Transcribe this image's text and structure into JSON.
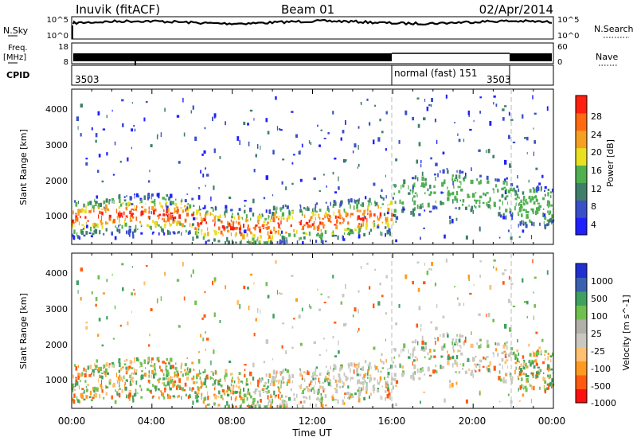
{
  "header": {
    "station": "Inuvik (fitACF)",
    "beam": "Beam 01",
    "date": "02/Apr/2014"
  },
  "colors": {
    "power": [
      "#2020ff",
      "#3a50c8",
      "#3f7f6a",
      "#50b050",
      "#e8e020",
      "#f5a020",
      "#ff6a10",
      "#ff2010"
    ],
    "velocity": [
      "#ff1010",
      "#ff5a10",
      "#ff9a20",
      "#ffc070",
      "#c8c8c0",
      "#b0b0a8",
      "#70c050",
      "#40a060",
      "#3a60b0",
      "#2030d0"
    ]
  },
  "chart_data": [
    {
      "type": "line",
      "title": "N.Sky / N.Search",
      "left_label": "N.Sky",
      "right_label": "N.Search",
      "left_ticks": [
        "10^5",
        "10^0"
      ],
      "right_ticks": [
        "10^5",
        "10^0"
      ]
    },
    {
      "type": "line",
      "title": "Freq / Nave",
      "left_label": "Freq.",
      "left_unit": "[MHz]",
      "right_label": "Nave",
      "left_ticks": [
        "18",
        "8"
      ],
      "right_ticks": [
        "60",
        "0"
      ]
    },
    {
      "type": "table",
      "label": "CPID",
      "segments": [
        {
          "text": "3503",
          "start_hour": 0,
          "end_hour": 16
        },
        {
          "text": "normal (fast) 151",
          "start_hour": 16,
          "end_hour": 22
        },
        {
          "text": "3503",
          "start_hour": 22,
          "end_hour": 24
        }
      ]
    },
    {
      "type": "heatmap",
      "ylabel": "Slant Range [km]",
      "yticks": [
        1000,
        2000,
        3000,
        4000
      ],
      "ylim": [
        200,
        4500
      ],
      "xlim": [
        0,
        24
      ],
      "colorbar_label": "Power [dB]",
      "colorbar_ticks": [
        4,
        8,
        12,
        16,
        20,
        24,
        28
      ],
      "colorbar_range": [
        0,
        30
      ]
    },
    {
      "type": "heatmap",
      "ylabel": "Slant Range [km]",
      "yticks": [
        1000,
        2000,
        3000,
        4000
      ],
      "ylim": [
        200,
        4500
      ],
      "xlim": [
        0,
        24
      ],
      "colorbar_label": "Velocity [m s^-1]",
      "colorbar_ticks": [
        "1000",
        "500",
        "100",
        "25",
        "-25",
        "-100",
        "-500",
        "-1000"
      ]
    }
  ],
  "xaxis": {
    "label": "Time UT",
    "ticks": [
      "00:00",
      "04:00",
      "08:00",
      "12:00",
      "16:00",
      "20:00",
      "00:00"
    ]
  }
}
